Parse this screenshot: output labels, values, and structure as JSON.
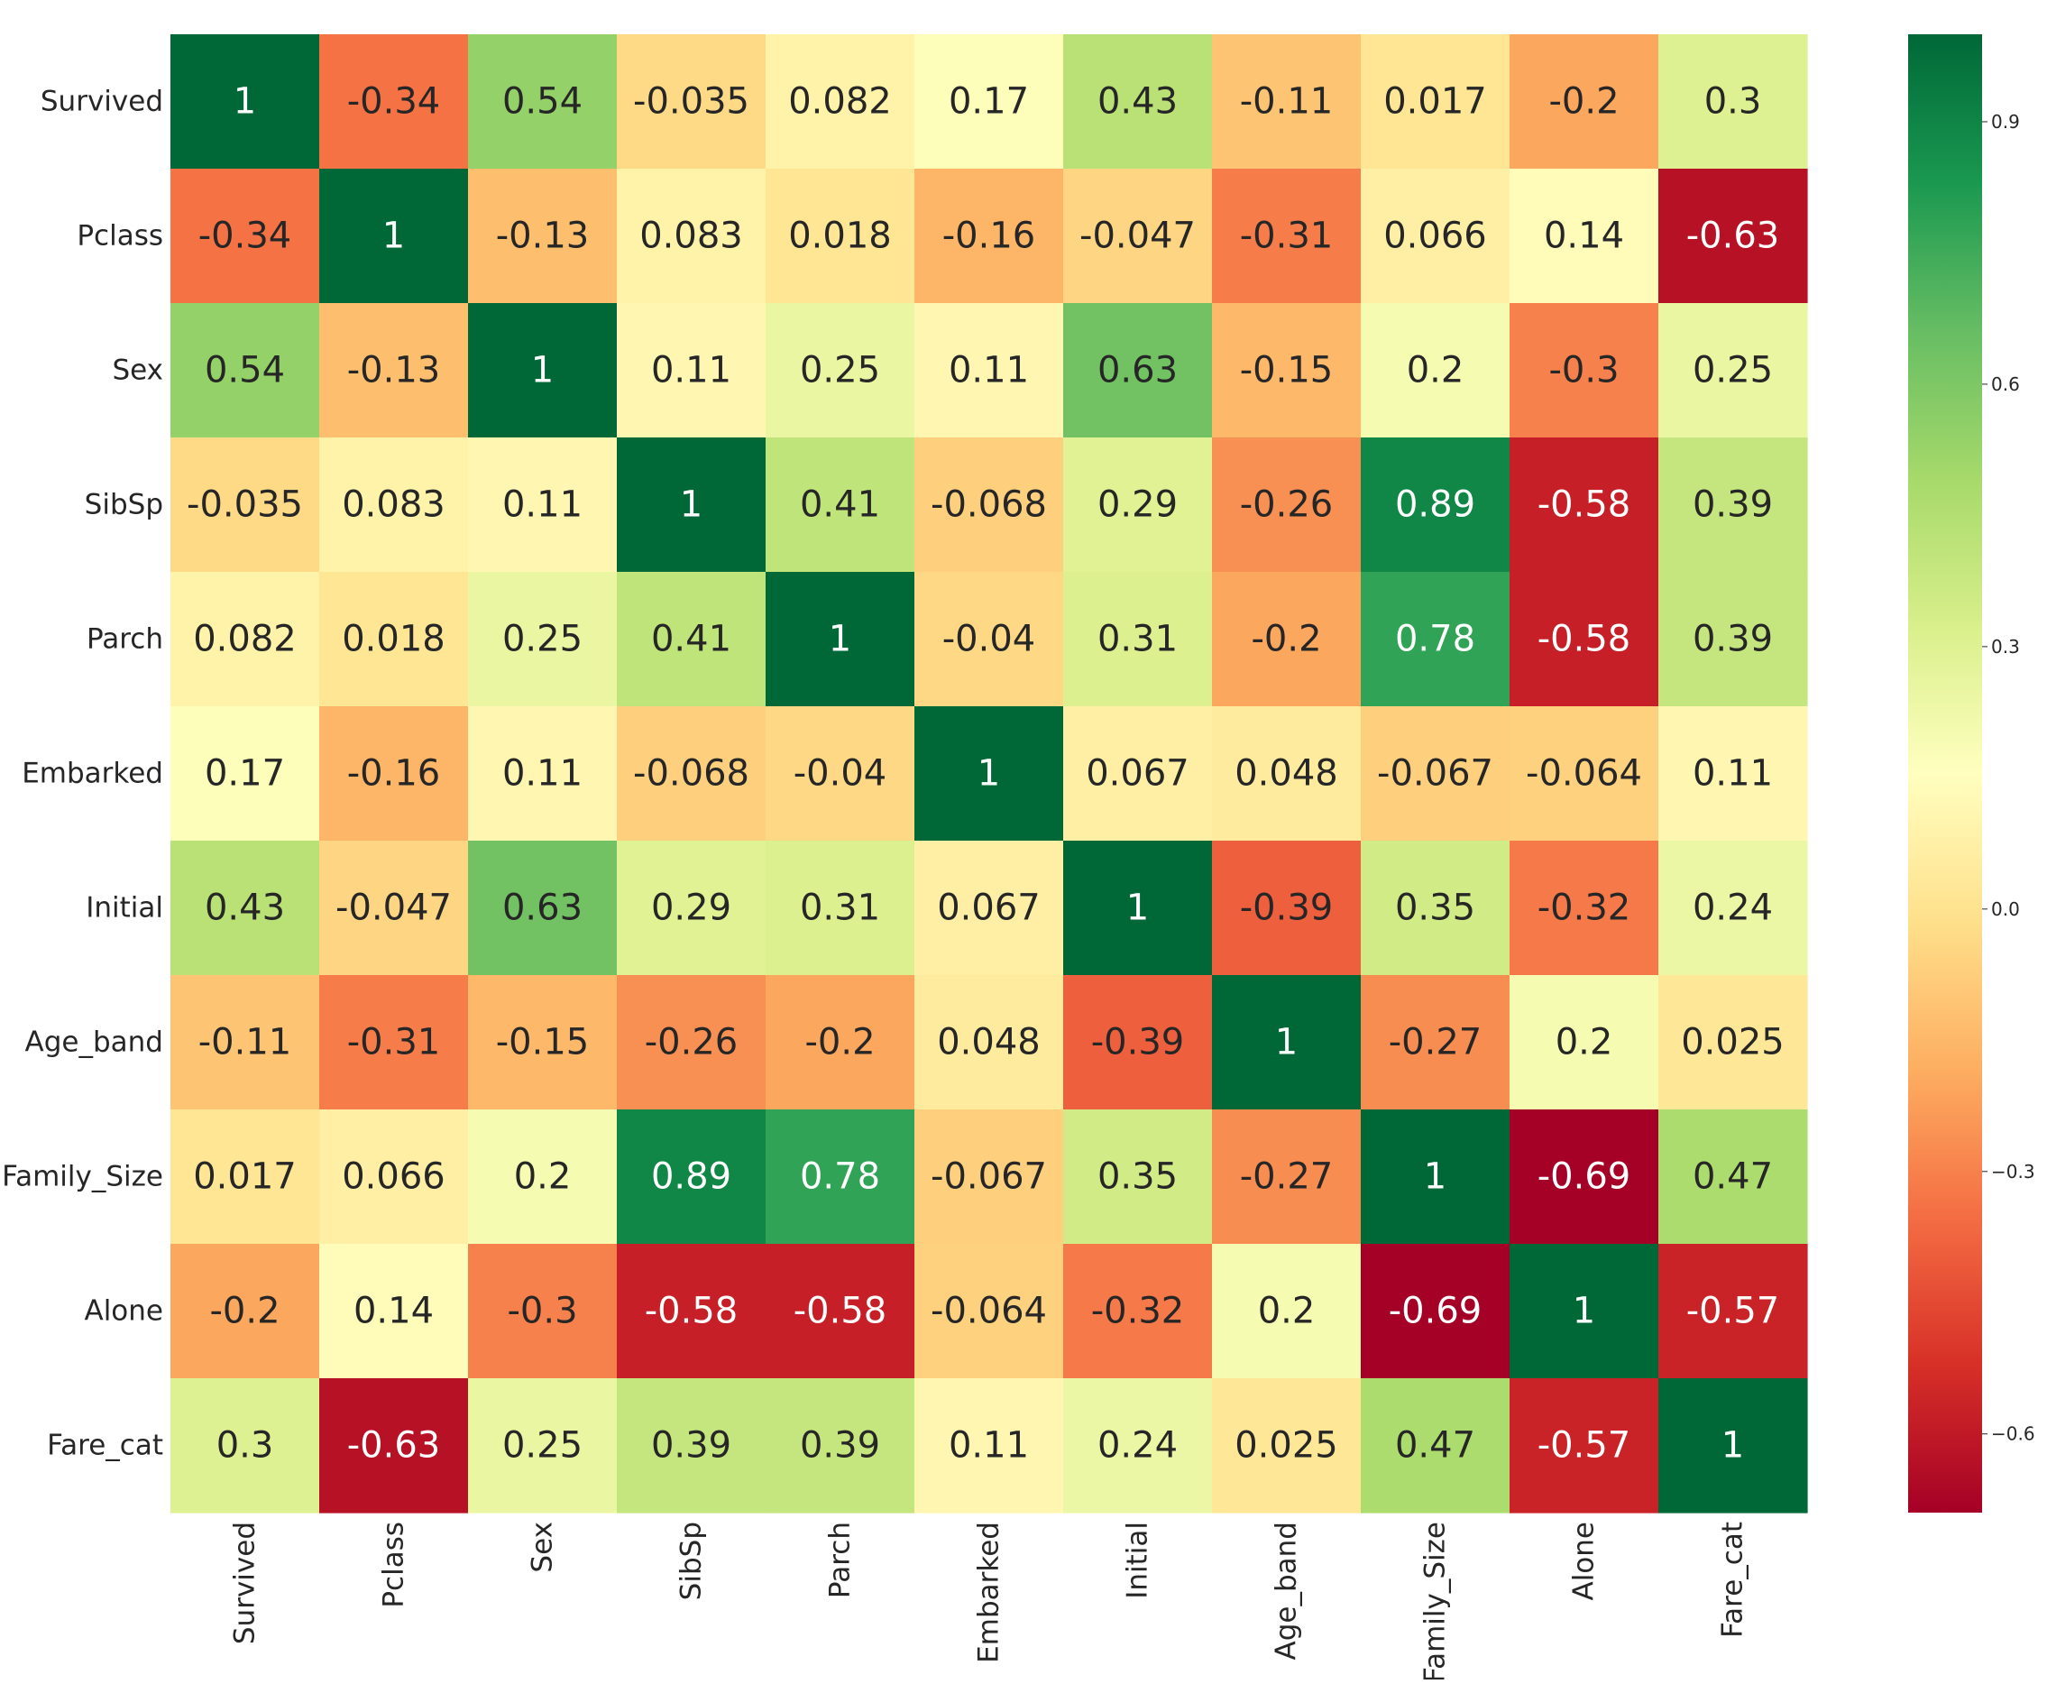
{
  "chart_data": {
    "type": "heatmap",
    "title": "",
    "xlabel": "",
    "ylabel": "",
    "colormap": "RdYlGn",
    "vmin": -0.69,
    "vmax": 1.0,
    "annotations": true,
    "labels": [
      "Survived",
      "Pclass",
      "Sex",
      "SibSp",
      "Parch",
      "Embarked",
      "Initial",
      "Age_band",
      "Family_Size",
      "Alone",
      "Fare_cat"
    ],
    "values": [
      [
        "1",
        "-0.34",
        "0.54",
        "-0.035",
        "0.082",
        "0.17",
        "0.43",
        "-0.11",
        "0.017",
        "-0.2",
        "0.3"
      ],
      [
        "-0.34",
        "1",
        "-0.13",
        "0.083",
        "0.018",
        "-0.16",
        "-0.047",
        "-0.31",
        "0.066",
        "0.14",
        "-0.63"
      ],
      [
        "0.54",
        "-0.13",
        "1",
        "0.11",
        "0.25",
        "0.11",
        "0.63",
        "-0.15",
        "0.2",
        "-0.3",
        "0.25"
      ],
      [
        "-0.035",
        "0.083",
        "0.11",
        "1",
        "0.41",
        "-0.068",
        "0.29",
        "-0.26",
        "0.89",
        "-0.58",
        "0.39"
      ],
      [
        "0.082",
        "0.018",
        "0.25",
        "0.41",
        "1",
        "-0.04",
        "0.31",
        "-0.2",
        "0.78",
        "-0.58",
        "0.39"
      ],
      [
        "0.17",
        "-0.16",
        "0.11",
        "-0.068",
        "-0.04",
        "1",
        "0.067",
        "0.048",
        "-0.067",
        "-0.064",
        "0.11"
      ],
      [
        "0.43",
        "-0.047",
        "0.63",
        "0.29",
        "0.31",
        "0.067",
        "1",
        "-0.39",
        "0.35",
        "-0.32",
        "0.24"
      ],
      [
        "-0.11",
        "-0.31",
        "-0.15",
        "-0.26",
        "-0.2",
        "0.048",
        "-0.39",
        "1",
        "-0.27",
        "0.2",
        "0.025"
      ],
      [
        "0.017",
        "0.066",
        "0.2",
        "0.89",
        "0.78",
        "-0.067",
        "0.35",
        "-0.27",
        "1",
        "-0.69",
        "0.47"
      ],
      [
        "-0.2",
        "0.14",
        "-0.3",
        "-0.58",
        "-0.58",
        "-0.064",
        "-0.32",
        "0.2",
        "-0.69",
        "1",
        "-0.57"
      ],
      [
        "0.3",
        "-0.63",
        "0.25",
        "0.39",
        "0.39",
        "0.11",
        "0.24",
        "0.025",
        "0.47",
        "-0.57",
        "1"
      ]
    ],
    "colorbar": {
      "ticks": [
        0.9,
        0.6,
        0.3,
        0.0,
        -0.3,
        -0.6
      ],
      "tick_labels": [
        "0.9",
        "0.6",
        "0.3",
        "0.0",
        "−0.3",
        "−0.6"
      ]
    }
  }
}
